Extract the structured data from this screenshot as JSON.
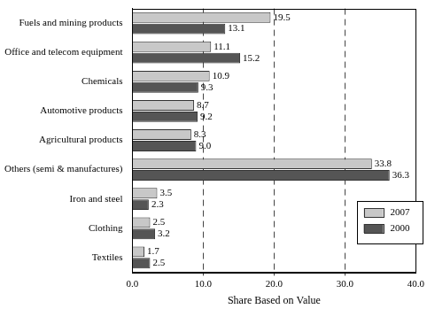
{
  "chart_data": {
    "type": "bar",
    "orientation": "horizontal",
    "x_label": "Share Based on Value",
    "categories": [
      "Fuels and mining products",
      "Office and telecom equipment",
      "Chemicals",
      "Automotive products",
      "Agricultural products",
      "Others (semi & manufactures)",
      "Iron and steel",
      "Clothing",
      "Textiles"
    ],
    "series": [
      {
        "name": "2007",
        "color": "#c8c8c8",
        "values": [
          19.5,
          11.1,
          10.9,
          8.7,
          8.3,
          33.8,
          3.5,
          2.5,
          1.7
        ],
        "value_labels": [
          "19.5",
          "11.1",
          "10.9",
          "8.7",
          "8.3",
          "33.8",
          "3.5",
          "2.5",
          "1.7"
        ]
      },
      {
        "name": "2000",
        "color": "#555555",
        "values": [
          13.1,
          15.2,
          9.3,
          9.2,
          9.0,
          36.3,
          2.3,
          3.2,
          2.5
        ],
        "value_labels": [
          "13.1",
          "15.2",
          "9.3",
          "9.2",
          "9.0",
          "36.3",
          "2.3",
          "3.2",
          "2.5"
        ]
      }
    ],
    "xlim": [
      0,
      40
    ],
    "xticks": [
      {
        "value": 0,
        "label": "0.0"
      },
      {
        "value": 10,
        "label": "10.0"
      },
      {
        "value": 20,
        "label": "20.0"
      },
      {
        "value": 30,
        "label": "30.0"
      },
      {
        "value": 40,
        "label": "40.0"
      }
    ],
    "grid": true,
    "legend": "lower right",
    "data_labels": true
  }
}
